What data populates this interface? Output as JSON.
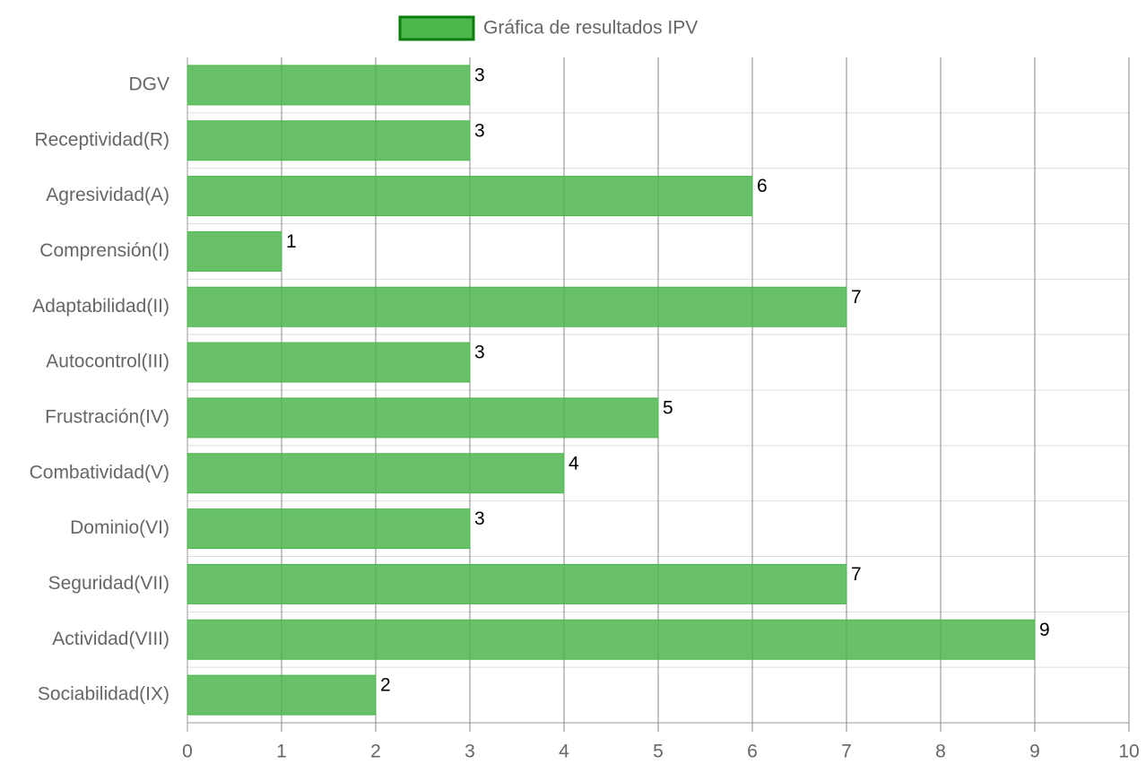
{
  "chart_data": {
    "type": "bar",
    "categories": [
      "DGV",
      "Receptividad(R)",
      "Agresividad(A)",
      "Comprensión(I)",
      "Adaptabilidad(II)",
      "Autocontrol(III)",
      "Frustración(IV)",
      "Combatividad(V)",
      "Dominio(VI)",
      "Seguridad(VII)",
      "Actividad(VIII)",
      "Sociabilidad(IX)"
    ],
    "series": [
      {
        "name": "Gráfica de resultados IPV",
        "color": "#4db64d",
        "edge_color": "#0b7d0b",
        "values": [
          3,
          3,
          6,
          1,
          7,
          3,
          5,
          4,
          3,
          7,
          9,
          2
        ]
      }
    ],
    "xlim": [
      0,
      10
    ],
    "xticks": [
      0,
      1,
      2,
      3,
      4,
      5,
      6,
      7,
      8,
      9,
      10
    ],
    "grid": true
  }
}
